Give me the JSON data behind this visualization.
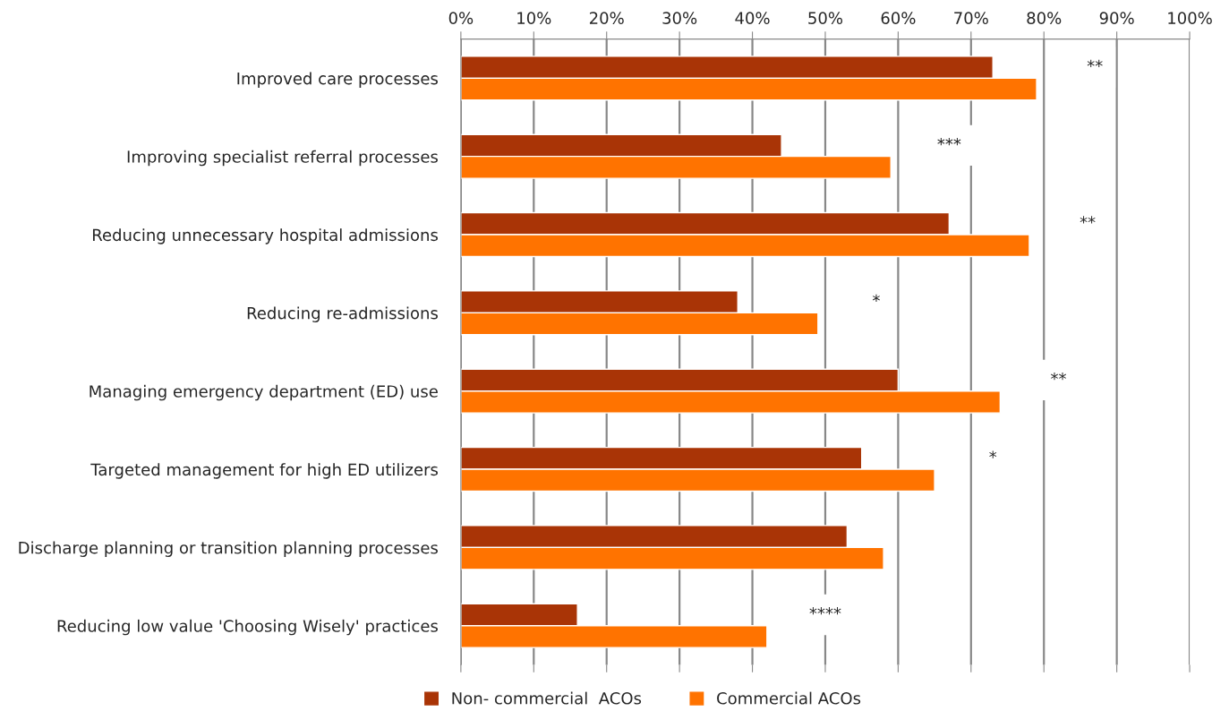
{
  "chart_data": {
    "type": "bar",
    "orientation": "horizontal",
    "categories": [
      "Improved care processes",
      "Improving specialist referral processes",
      "Reducing unnecessary hospital admissions",
      "Reducing re-admissions",
      "Managing emergency department (ED) use",
      "Targeted management for high ED utilizers",
      "Discharge planning or transition planning processes",
      "Reducing low value 'Choosing Wisely' practices"
    ],
    "series": [
      {
        "name": "Non- commercial  ACOs",
        "color": "#a93406",
        "values": [
          73,
          44,
          67,
          38,
          60,
          55,
          53,
          16
        ]
      },
      {
        "name": "Commercial ACOs",
        "color": "#ff7300",
        "values": [
          79,
          59,
          78,
          49,
          74,
          65,
          58,
          42
        ]
      }
    ],
    "xlim": [
      0,
      100
    ],
    "xticks": [
      {
        "value": 0,
        "label": "0%"
      },
      {
        "value": 10,
        "label": "10%"
      },
      {
        "value": 20,
        "label": "20%"
      },
      {
        "value": 30,
        "label": "30%"
      },
      {
        "value": 40,
        "label": "40%"
      },
      {
        "value": 50,
        "label": "50%"
      },
      {
        "value": 60,
        "label": "60%"
      },
      {
        "value": 70,
        "label": "70%"
      },
      {
        "value": 80,
        "label": "80%"
      },
      {
        "value": 90,
        "label": "90%"
      },
      {
        "value": 100,
        "label": "100%"
      }
    ],
    "grid": "x",
    "legend": "bottom",
    "annotations": [
      "**",
      "***",
      "**",
      "*",
      "**",
      "*",
      "****"
    ]
  }
}
